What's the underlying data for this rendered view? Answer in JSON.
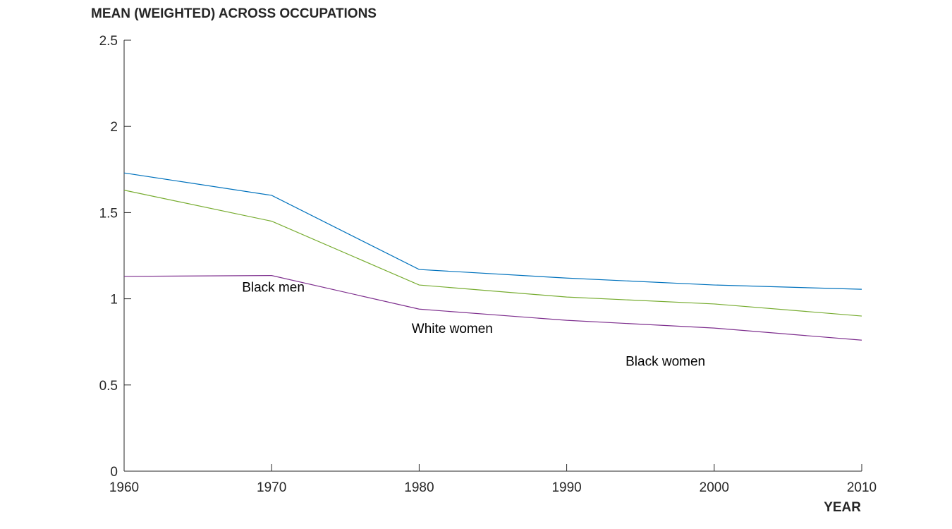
{
  "chart_data": {
    "type": "line",
    "title": "MEAN (WEIGHTED) ACROSS OCCUPATIONS",
    "xlabel": "YEAR",
    "ylabel": "",
    "x": [
      1960,
      1970,
      1980,
      1990,
      2000,
      2010
    ],
    "xlim": [
      1960,
      2010
    ],
    "ylim": [
      0,
      2.5
    ],
    "xticks": [
      "1960",
      "1970",
      "1980",
      "1990",
      "2000",
      "2010"
    ],
    "yticks": [
      "0",
      "0.5",
      "1",
      "1.5",
      "2",
      "2.5"
    ],
    "grid": false,
    "series": [
      {
        "color": "#0072BD",
        "values": [
          1.73,
          1.6,
          1.17,
          1.12,
          1.08,
          1.055
        ]
      },
      {
        "color": "#77AC30",
        "values": [
          1.63,
          1.45,
          1.08,
          1.01,
          0.97,
          0.9
        ]
      },
      {
        "color": "#7E2F8E",
        "values": [
          1.13,
          1.135,
          0.94,
          0.875,
          0.83,
          0.76
        ]
      }
    ],
    "annotations": [
      {
        "text": "Black men",
        "x": 1970,
        "y": 1.07
      },
      {
        "text": "White women",
        "x": 1981.5,
        "y": 0.83
      },
      {
        "text": "Black women",
        "x": 1996,
        "y": 0.64
      }
    ]
  }
}
